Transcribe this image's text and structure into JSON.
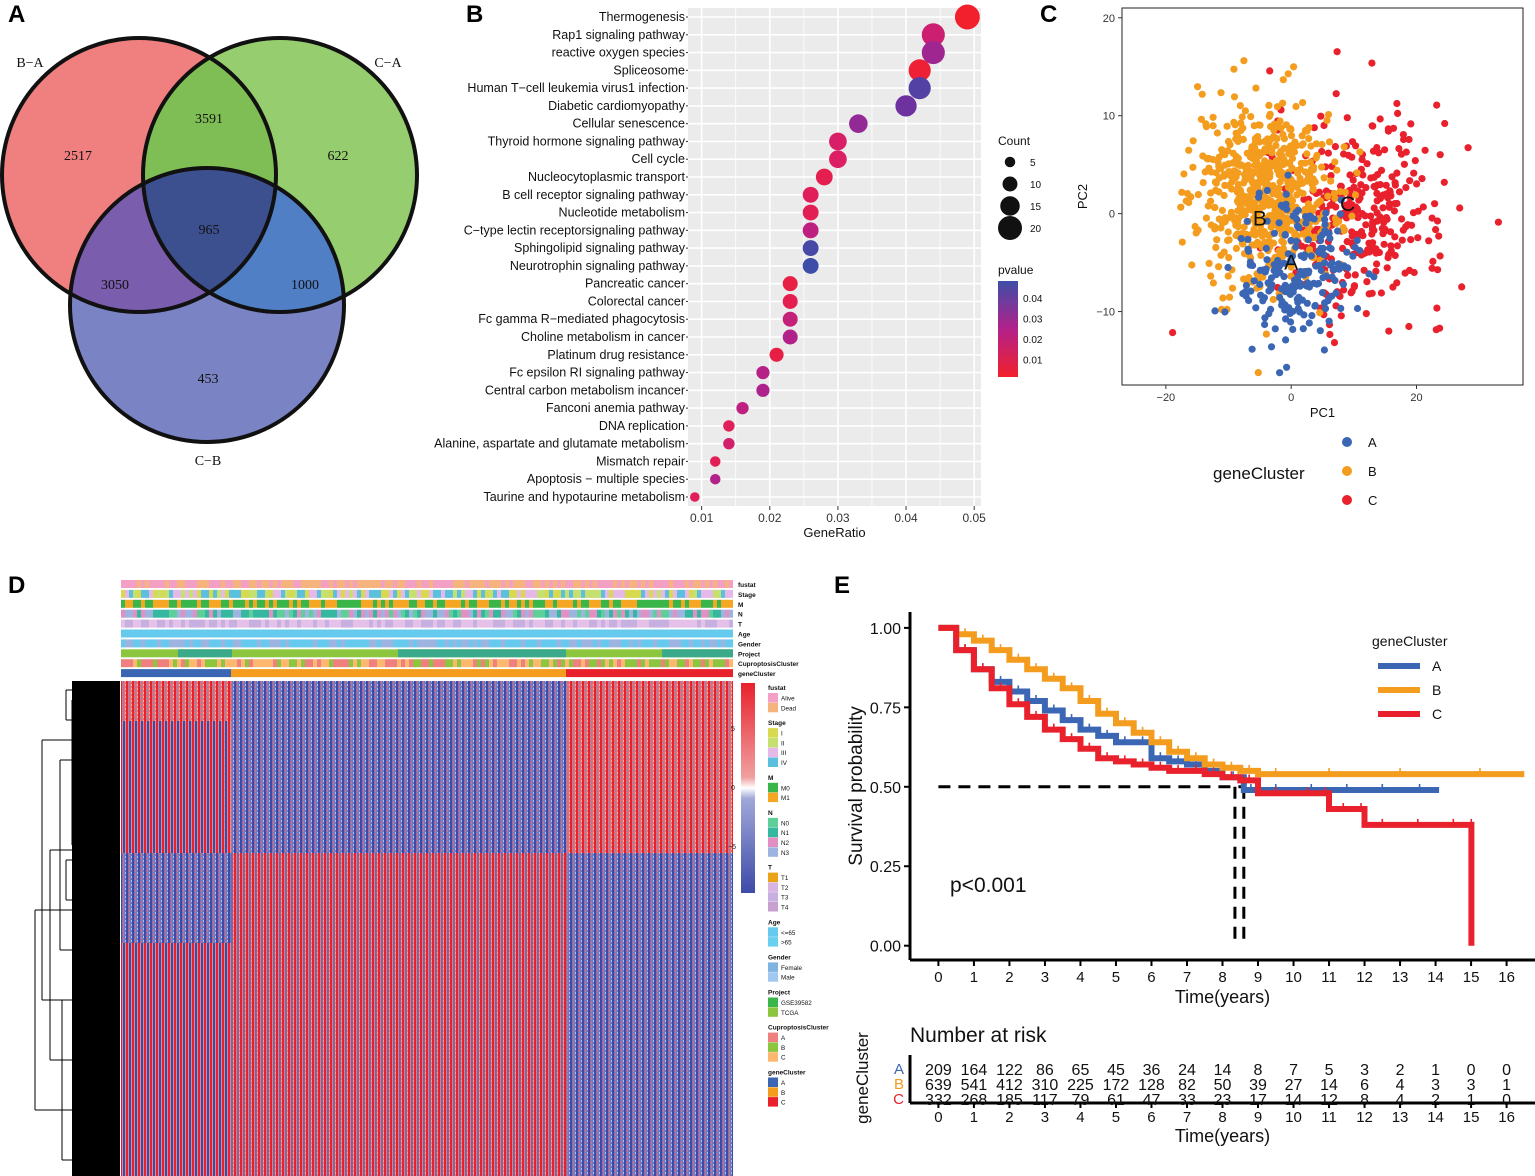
{
  "panels": {
    "a": "A",
    "b": "B",
    "c": "C",
    "d": "D",
    "e": "E"
  },
  "colors": {
    "A": "#3b66b3",
    "B": "#f39c1e",
    "C": "#e8212c",
    "venn_ba": "#f07f7f",
    "venn_ca": "#96cd6e",
    "venn_cb": "#7a84c4"
  },
  "chart_data": [
    {
      "panel": "A",
      "type": "venn",
      "sets": [
        "B−A",
        "C−A",
        "C−B"
      ],
      "regions": [
        {
          "sets": "B−A only",
          "value": "2517"
        },
        {
          "sets": "C−A only",
          "value": "622"
        },
        {
          "sets": "C−B only",
          "value": "453"
        },
        {
          "sets": "B−A ∩ C−A",
          "value": "3591"
        },
        {
          "sets": "B−A ∩ C−B",
          "value": "3050"
        },
        {
          "sets": "C−A ∩ C−B",
          "value": "1000"
        },
        {
          "sets": "all",
          "value": "965"
        }
      ]
    },
    {
      "panel": "B",
      "type": "scatter",
      "title": "",
      "xlabel": "GeneRatio",
      "xlim": [
        0.008,
        0.051
      ],
      "xticks": [
        "0.01",
        "0.02",
        "0.03",
        "0.04",
        "0.05"
      ],
      "size_legend": {
        "title": "Count",
        "values": [
          5,
          10,
          15,
          20
        ]
      },
      "color_legend": {
        "title": "pvalue",
        "values": [
          "0.04",
          "0.03",
          "0.02",
          "0.01"
        ]
      },
      "terms": [
        {
          "name": "Thermogenesis",
          "ratio": 0.049,
          "count": 21,
          "p": 0.003
        },
        {
          "name": "Rap1 signaling pathway",
          "ratio": 0.044,
          "count": 19,
          "p": 0.018
        },
        {
          "name": "reactive oxygen species",
          "ratio": 0.044,
          "count": 19,
          "p": 0.028
        },
        {
          "name": "Spliceosome",
          "ratio": 0.042,
          "count": 18,
          "p": 0.005
        },
        {
          "name": "Human T−cell leukemia virus1 infection",
          "ratio": 0.042,
          "count": 18,
          "p": 0.042
        },
        {
          "name": "Diabetic cardiomyopathy",
          "ratio": 0.04,
          "count": 17,
          "p": 0.036
        },
        {
          "name": "Cellular senescence",
          "ratio": 0.033,
          "count": 14,
          "p": 0.03
        },
        {
          "name": "Thyroid hormone signaling pathway",
          "ratio": 0.03,
          "count": 13,
          "p": 0.015
        },
        {
          "name": "Cell cycle",
          "ratio": 0.03,
          "count": 13,
          "p": 0.014
        },
        {
          "name": "Nucleocytoplasmic transport",
          "ratio": 0.028,
          "count": 12,
          "p": 0.01
        },
        {
          "name": "B cell receptor signaling pathway",
          "ratio": 0.026,
          "count": 11,
          "p": 0.012
        },
        {
          "name": "Nucleotide metabolism",
          "ratio": 0.026,
          "count": 11,
          "p": 0.011
        },
        {
          "name": "C−type lectin receptorsignaling pathway",
          "ratio": 0.026,
          "count": 11,
          "p": 0.022
        },
        {
          "name": "Sphingolipid signaling pathway",
          "ratio": 0.026,
          "count": 11,
          "p": 0.045
        },
        {
          "name": "Neurotrophin signaling pathway",
          "ratio": 0.026,
          "count": 11,
          "p": 0.047
        },
        {
          "name": "Pancreatic cancer",
          "ratio": 0.023,
          "count": 10,
          "p": 0.008
        },
        {
          "name": "Colorectal cancer",
          "ratio": 0.023,
          "count": 10,
          "p": 0.01
        },
        {
          "name": "Fc gamma R−mediated phagocytosis",
          "ratio": 0.023,
          "count": 10,
          "p": 0.02
        },
        {
          "name": "Choline metabolism in cancer",
          "ratio": 0.023,
          "count": 10,
          "p": 0.025
        },
        {
          "name": "Platinum drug resistance",
          "ratio": 0.021,
          "count": 9,
          "p": 0.008
        },
        {
          "name": "Fc epsilon RI signaling pathway",
          "ratio": 0.019,
          "count": 8,
          "p": 0.024
        },
        {
          "name": "Central carbon metabolism incancer",
          "ratio": 0.019,
          "count": 8,
          "p": 0.026
        },
        {
          "name": "Fanconi anemia pathway",
          "ratio": 0.016,
          "count": 7,
          "p": 0.022
        },
        {
          "name": "DNA replication",
          "ratio": 0.014,
          "count": 6,
          "p": 0.012
        },
        {
          "name": "Alanine, aspartate and glutamate metabolism",
          "ratio": 0.014,
          "count": 6,
          "p": 0.016
        },
        {
          "name": "Mismatch repair",
          "ratio": 0.012,
          "count": 5,
          "p": 0.011
        },
        {
          "name": "Apoptosis − multiple species",
          "ratio": 0.012,
          "count": 5,
          "p": 0.025
        },
        {
          "name": "Taurine and hypotaurine metabolism",
          "ratio": 0.009,
          "count": 4,
          "p": 0.012
        }
      ]
    },
    {
      "panel": "C",
      "type": "scatter",
      "xlabel": "PC1",
      "ylabel": "PC2",
      "xlim": [
        -27,
        37
      ],
      "ylim": [
        -17.5,
        21
      ],
      "xticks": [
        "−20",
        "0",
        "20"
      ],
      "yticks": [
        "−10",
        "0",
        "10",
        "20"
      ],
      "legend_title": "geneCluster",
      "clusters": [
        "A",
        "B",
        "C"
      ],
      "centroids": [
        {
          "label": "A",
          "x": 0,
          "y": -5
        },
        {
          "label": "B",
          "x": -5,
          "y": -0.5
        },
        {
          "label": "C",
          "x": 9,
          "y": 1
        }
      ],
      "note": "Point cloud of ~1180 samples: B centered (-4, 2), C centered (10, 0), A centered (1, -7)"
    },
    {
      "panel": "D",
      "type": "heatmap",
      "annotation_rows": [
        "fustat",
        "Stage",
        "M",
        "N",
        "T",
        "Age",
        "Gender",
        "Project",
        "CuproptosisCluster",
        "geneCluster"
      ],
      "scale": {
        "max": "5",
        "mid": "0",
        "min": "−5"
      },
      "legends": [
        {
          "title": "fustat",
          "items": [
            "Alive",
            "Dead"
          ]
        },
        {
          "title": "Stage",
          "items": [
            "I",
            "II",
            "III",
            "IV"
          ]
        },
        {
          "title": "M",
          "items": [
            "M0",
            "M1"
          ]
        },
        {
          "title": "N",
          "items": [
            "N0",
            "N1",
            "N2",
            "N3"
          ]
        },
        {
          "title": "T",
          "items": [
            "T1",
            "T2",
            "T3",
            "T4"
          ]
        },
        {
          "title": "Age",
          "items": [
            "<=65",
            ">65"
          ]
        },
        {
          "title": "Gender",
          "items": [
            "Female",
            "Male"
          ]
        },
        {
          "title": "Project",
          "items": [
            "GSE39582",
            "TCGA"
          ]
        },
        {
          "title": "CuproptosisCluster",
          "items": [
            "A",
            "B",
            "C"
          ]
        },
        {
          "title": "geneCluster",
          "items": [
            "A",
            "B",
            "C"
          ]
        }
      ]
    },
    {
      "panel": "E",
      "type": "line",
      "xlabel": "Time(years)",
      "ylabel": "Survival probability",
      "xlim": [
        -0.8,
        16.8
      ],
      "ylim": [
        0,
        1.05
      ],
      "xticks": [
        "0",
        "1",
        "2",
        "3",
        "4",
        "5",
        "6",
        "7",
        "8",
        "9",
        "10",
        "11",
        "12",
        "13",
        "14",
        "15",
        "16"
      ],
      "yticks": [
        "0.00",
        "0.25",
        "0.50",
        "0.75",
        "1.00"
      ],
      "pvalue": "p<0.001",
      "legend_title": "geneCluster",
      "series": [
        {
          "name": "A",
          "x": [
            0,
            0.5,
            1,
            1.5,
            2,
            2.5,
            3,
            3.5,
            4,
            4.5,
            5,
            5.5,
            6,
            6.5,
            7,
            7.5,
            8,
            8.6,
            9,
            10,
            11,
            12,
            13,
            14.1
          ],
          "y": [
            1,
            0.93,
            0.87,
            0.83,
            0.8,
            0.77,
            0.74,
            0.71,
            0.68,
            0.66,
            0.64,
            0.64,
            0.59,
            0.58,
            0.57,
            0.55,
            0.53,
            0.49,
            0.49,
            0.49,
            0.49,
            0.49,
            0.49,
            0.49
          ]
        },
        {
          "name": "B",
          "x": [
            0,
            0.5,
            1,
            1.5,
            2,
            2.5,
            3,
            3.5,
            4,
            4.5,
            5,
            5.5,
            6,
            6.5,
            7,
            7.5,
            8,
            8.5,
            9,
            10,
            12,
            14,
            16.5
          ],
          "y": [
            1,
            0.98,
            0.96,
            0.93,
            0.9,
            0.87,
            0.84,
            0.81,
            0.77,
            0.73,
            0.7,
            0.67,
            0.64,
            0.61,
            0.59,
            0.57,
            0.56,
            0.55,
            0.54,
            0.54,
            0.54,
            0.54,
            0.54
          ]
        },
        {
          "name": "C",
          "x": [
            0,
            0.5,
            1,
            1.5,
            2,
            2.5,
            3,
            3.5,
            4,
            4.5,
            5,
            5.5,
            6,
            6.5,
            7,
            7.5,
            8,
            8.5,
            9,
            10,
            10.8,
            11,
            11.8,
            12,
            13,
            14,
            15,
            15.01
          ],
          "y": [
            1,
            0.93,
            0.87,
            0.81,
            0.76,
            0.72,
            0.68,
            0.65,
            0.62,
            0.59,
            0.58,
            0.57,
            0.56,
            0.55,
            0.55,
            0.54,
            0.53,
            0.52,
            0.48,
            0.48,
            0.48,
            0.43,
            0.43,
            0.38,
            0.38,
            0.38,
            0.38,
            0.0
          ]
        }
      ],
      "medians": [
        8.35,
        8.6
      ],
      "risk_table": {
        "title": "Number at risk",
        "ylabel": "geneCluster",
        "rows": [
          {
            "name": "A",
            "values": [
              "209",
              "164",
              "122",
              "86",
              "65",
              "45",
              "36",
              "24",
              "14",
              "8",
              "7",
              "5",
              "3",
              "2",
              "1",
              "0",
              "0"
            ]
          },
          {
            "name": "B",
            "values": [
              "639",
              "541",
              "412",
              "310",
              "225",
              "172",
              "128",
              "82",
              "50",
              "39",
              "27",
              "14",
              "6",
              "4",
              "3",
              "3",
              "1"
            ]
          },
          {
            "name": "C",
            "values": [
              "332",
              "268",
              "185",
              "117",
              "79",
              "61",
              "47",
              "33",
              "23",
              "17",
              "14",
              "12",
              "8",
              "4",
              "2",
              "1",
              "0"
            ]
          }
        ]
      }
    }
  ]
}
